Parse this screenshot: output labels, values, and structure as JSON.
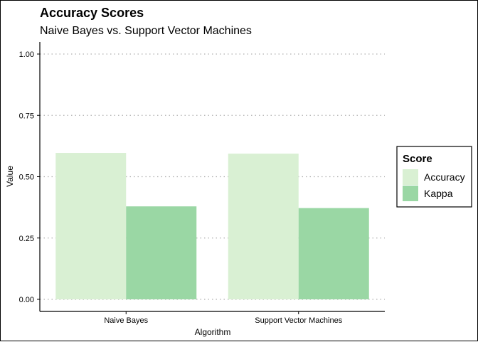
{
  "colors": {
    "accuracy": "#d9f0d3",
    "kappa": "#9ad7a4",
    "grid": "#b0b0b0",
    "axis": "#000000"
  },
  "chart_data": {
    "type": "bar",
    "title": "Accuracy Scores",
    "subtitle": "Naive Bayes vs. Support Vector Machines",
    "xlabel": "Algorithm",
    "ylabel": "Value",
    "categories": [
      "Naive Bayes",
      "Support Vector Machines"
    ],
    "series": [
      {
        "name": "Accuracy",
        "values": [
          0.597,
          0.594
        ]
      },
      {
        "name": "Kappa",
        "values": [
          0.379,
          0.372
        ]
      }
    ],
    "ylim": [
      0,
      1.0
    ],
    "yticks": [
      "0.00",
      "0.25",
      "0.50",
      "0.75",
      "1.00"
    ],
    "ytick_values": [
      0,
      0.25,
      0.5,
      0.75,
      1.0
    ],
    "grid": "horizontal dotted",
    "legend": {
      "title": "Score",
      "position": "right"
    }
  }
}
